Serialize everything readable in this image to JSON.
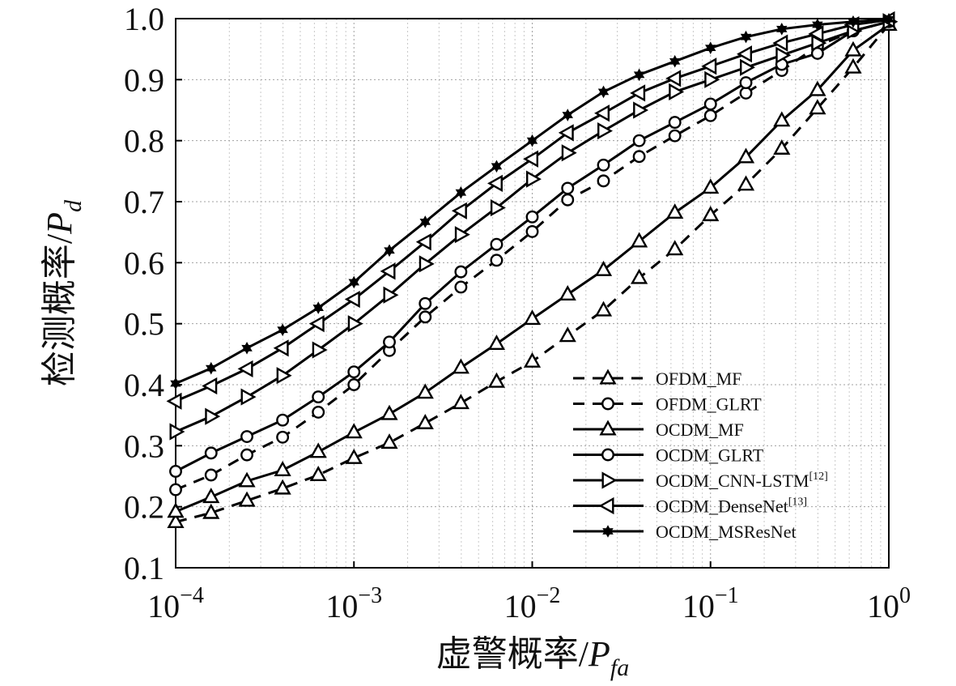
{
  "chart_data": {
    "type": "line",
    "title": "",
    "xlabel": "虚警概率",
    "xlabel_symbol": "P",
    "xlabel_subscript": "fa",
    "ylabel": "检测概率",
    "ylabel_symbol": "P",
    "ylabel_subscript": "d",
    "xscale": "log",
    "xlim": [
      0.0001,
      1
    ],
    "ylim": [
      0.1,
      1.0
    ],
    "x_ticks": [
      {
        "base": "10",
        "exp": "−4"
      },
      {
        "base": "10",
        "exp": "−3"
      },
      {
        "base": "10",
        "exp": "−2"
      },
      {
        "base": "10",
        "exp": "−1"
      },
      {
        "base": "10",
        "exp": "0"
      }
    ],
    "y_ticks": [
      "0.1",
      "0.2",
      "0.3",
      "0.4",
      "0.5",
      "0.6",
      "0.7",
      "0.8",
      "0.9",
      "1.0"
    ],
    "grid": true,
    "legend_position": "bottom-right",
    "x": [
      0.0001,
      0.000158,
      0.000251,
      0.000398,
      0.000631,
      0.001,
      0.00158,
      0.00251,
      0.00398,
      0.00631,
      0.01,
      0.0158,
      0.0251,
      0.0398,
      0.0631,
      0.1,
      0.158,
      0.251,
      0.398,
      0.631,
      1.0
    ],
    "series": [
      {
        "name": "OFDM_MF",
        "sup": "",
        "line": "dashed",
        "marker": "triangle-up",
        "values": [
          0.175,
          0.19,
          0.21,
          0.23,
          0.252,
          0.28,
          0.305,
          0.337,
          0.37,
          0.405,
          0.438,
          0.48,
          0.522,
          0.575,
          0.622,
          0.678,
          0.728,
          0.787,
          0.853,
          0.92,
          0.99
        ]
      },
      {
        "name": "OFDM_GLRT",
        "sup": "",
        "line": "dashed",
        "marker": "circle",
        "values": [
          0.228,
          0.252,
          0.285,
          0.314,
          0.355,
          0.4,
          0.456,
          0.511,
          0.56,
          0.604,
          0.651,
          0.703,
          0.734,
          0.774,
          0.808,
          0.841,
          0.878,
          0.915,
          0.955,
          0.98,
          0.995
        ]
      },
      {
        "name": "OCDM_MF",
        "sup": "",
        "line": "solid",
        "marker": "triangle-up",
        "values": [
          0.192,
          0.216,
          0.242,
          0.26,
          0.29,
          0.322,
          0.352,
          0.387,
          0.428,
          0.467,
          0.508,
          0.548,
          0.588,
          0.635,
          0.682,
          0.723,
          0.773,
          0.833,
          0.883,
          0.948,
          0.99
        ]
      },
      {
        "name": "OCDM_GLRT",
        "sup": "",
        "line": "solid",
        "marker": "circle",
        "values": [
          0.258,
          0.288,
          0.315,
          0.342,
          0.38,
          0.421,
          0.47,
          0.533,
          0.585,
          0.63,
          0.675,
          0.722,
          0.76,
          0.8,
          0.83,
          0.86,
          0.895,
          0.925,
          0.943,
          0.98,
          0.995
        ]
      },
      {
        "name": "OCDM_CNN-LSTM",
        "sup": "[12]",
        "line": "solid",
        "marker": "triangle-right",
        "values": [
          0.323,
          0.348,
          0.38,
          0.415,
          0.457,
          0.5,
          0.547,
          0.598,
          0.646,
          0.69,
          0.737,
          0.78,
          0.816,
          0.85,
          0.88,
          0.9,
          0.92,
          0.94,
          0.96,
          0.98,
          0.995
        ]
      },
      {
        "name": "OCDM_DenseNet",
        "sup": "[13]",
        "line": "solid",
        "marker": "triangle-left",
        "values": [
          0.373,
          0.398,
          0.426,
          0.46,
          0.5,
          0.54,
          0.586,
          0.634,
          0.685,
          0.73,
          0.77,
          0.813,
          0.845,
          0.878,
          0.902,
          0.922,
          0.942,
          0.96,
          0.975,
          0.99,
          0.998
        ]
      },
      {
        "name": "OCDM_MSResNet",
        "sup": "",
        "line": "solid",
        "marker": "star",
        "values": [
          0.402,
          0.427,
          0.46,
          0.49,
          0.526,
          0.568,
          0.62,
          0.667,
          0.715,
          0.758,
          0.8,
          0.842,
          0.88,
          0.908,
          0.93,
          0.952,
          0.97,
          0.983,
          0.99,
          0.995,
          0.999
        ]
      }
    ]
  }
}
